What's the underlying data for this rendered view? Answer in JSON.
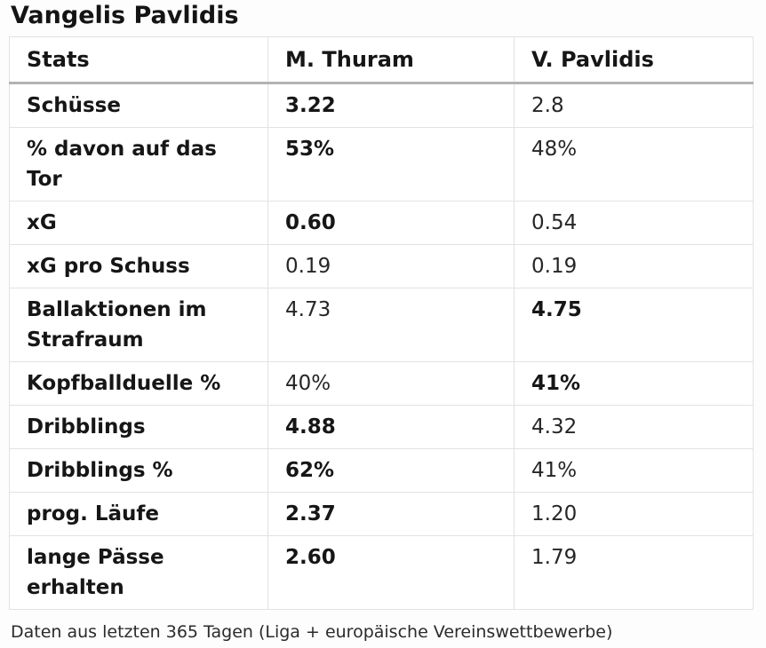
{
  "title": "Vangelis Pavlidis",
  "table": {
    "headers": [
      "Stats",
      "M. Thuram",
      "V. Pavlidis"
    ],
    "rows": [
      {
        "stat": "Schüsse",
        "thuram": "3.22",
        "pavlidis": "2.8",
        "bold": "thuram"
      },
      {
        "stat": "% davon auf das Tor",
        "thuram": "53%",
        "pavlidis": "48%",
        "bold": "thuram"
      },
      {
        "stat": "xG",
        "thuram": "0.60",
        "pavlidis": "0.54",
        "bold": "thuram"
      },
      {
        "stat": "xG pro Schuss",
        "thuram": "0.19",
        "pavlidis": "0.19",
        "bold": "none"
      },
      {
        "stat": "Ballaktionen im Strafraum",
        "thuram": "4.73",
        "pavlidis": "4.75",
        "bold": "pavlidis"
      },
      {
        "stat": "Kopfballduelle %",
        "thuram": "40%",
        "pavlidis": "41%",
        "bold": "pavlidis"
      },
      {
        "stat": "Dribblings",
        "thuram": "4.88",
        "pavlidis": "4.32",
        "bold": "thuram"
      },
      {
        "stat": "Dribblings %",
        "thuram": "62%",
        "pavlidis": "41%",
        "bold": "thuram"
      },
      {
        "stat": "prog. Läufe",
        "thuram": "2.37",
        "pavlidis": "1.20",
        "bold": "thuram"
      },
      {
        "stat": "lange Pässe erhalten",
        "thuram": "2.60",
        "pavlidis": "1.79",
        "bold": "thuram"
      }
    ]
  },
  "footer_note": "Daten aus letzten 365 Tagen (Liga + europäische Vereinswettbewerbe)",
  "colors": {
    "text": "#1e1e1e",
    "cell_border": "#e2e2e2",
    "header_underline": "#b3b3b3",
    "background": "#fdfdfd"
  },
  "chart_data": {
    "type": "table",
    "title": "Vangelis Pavlidis",
    "columns": [
      "Stats",
      "M. Thuram",
      "V. Pavlidis"
    ],
    "rows": [
      [
        "Schüsse",
        "3.22",
        "2.8"
      ],
      [
        "% davon auf das Tor",
        "53%",
        "48%"
      ],
      [
        "xG",
        "0.60",
        "0.54"
      ],
      [
        "xG pro Schuss",
        "0.19",
        "0.19"
      ],
      [
        "Ballaktionen im Strafraum",
        "4.73",
        "4.75"
      ],
      [
        "Kopfballduelle %",
        "40%",
        "41%"
      ],
      [
        "Dribblings",
        "4.88",
        "4.32"
      ],
      [
        "Dribblings %",
        "62%",
        "41%"
      ],
      [
        "prog. Läufe",
        "2.37",
        "1.20"
      ],
      [
        "lange Pässe erhalten",
        "2.60",
        "1.79"
      ]
    ],
    "bold_winner_per_row": [
      "thuram",
      "thuram",
      "thuram",
      "none",
      "pavlidis",
      "pavlidis",
      "thuram",
      "thuram",
      "thuram",
      "thuram"
    ],
    "note": "Daten aus letzten 365 Tagen (Liga + europäische Vereinswettbewerbe)"
  }
}
